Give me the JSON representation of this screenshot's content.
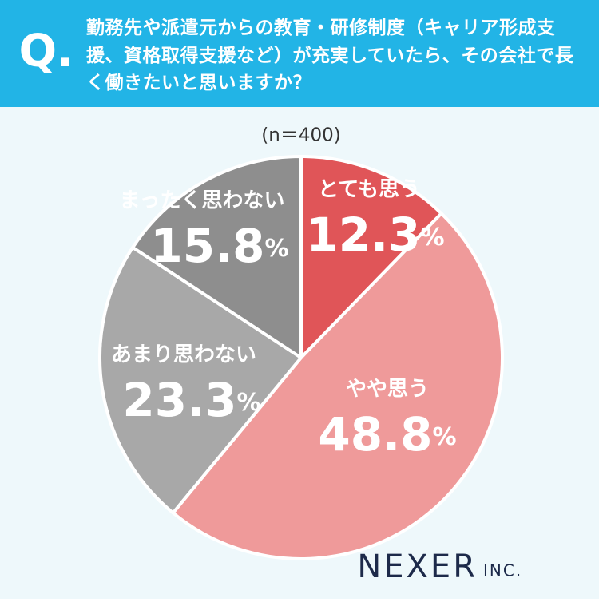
{
  "header": {
    "mark": "Q.",
    "question": "勤務先や派遣元からの教育・研修制度（キャリア形成支援、資格取得支援など）が充実していたら、その会社で長く働きたいと思いますか？"
  },
  "chart_data": {
    "type": "pie",
    "subtitle": "(n＝400)",
    "categories": [
      "とても思う",
      "やや思う",
      "あまり思わない",
      "まったく思わない"
    ],
    "values": [
      12.3,
      48.8,
      23.3,
      15.8
    ],
    "value_labels": [
      "12.3%",
      "48.8%",
      "23.3%",
      "15.8%"
    ],
    "colors": [
      "#e05558",
      "#ef9a9a",
      "#a8a8a8",
      "#8e8e8e"
    ]
  },
  "logo": {
    "name": "NEXER",
    "suffix": "INC."
  }
}
